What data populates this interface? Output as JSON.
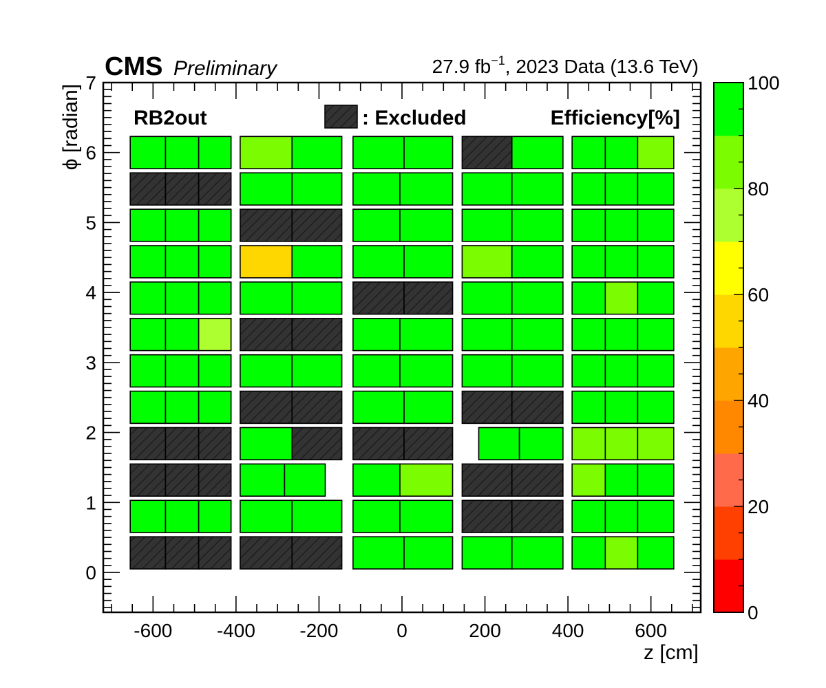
{
  "header": {
    "cms": "CMS",
    "preliminary": "Preliminary",
    "lumi": "27.9 fb",
    "lumi_sup": "−1",
    "lumi_rest": ", 2023 Data (13.6 TeV)"
  },
  "legend": {
    "region": "RB2out",
    "excluded": ": Excluded",
    "efficiency": "Efficiency[%]"
  },
  "chart_data": {
    "type": "heatmap",
    "xlabel": "z [cm]",
    "ylabel": "ϕ [radian]",
    "xlim": [
      -720,
      720
    ],
    "ylim": [
      -0.57,
      7
    ],
    "xticks": [
      -600,
      -400,
      -200,
      0,
      200,
      400,
      600
    ],
    "xtick_labels": [
      "-600",
      "-400",
      "-200",
      "0",
      "200",
      "400",
      "600"
    ],
    "yticks": [
      0,
      1,
      2,
      3,
      4,
      5,
      6,
      7
    ],
    "ytick_labels": [
      "0",
      "1",
      "2",
      "3",
      "4",
      "5",
      "6",
      "7"
    ],
    "colorbar": {
      "min": 0,
      "max": 100,
      "ticks": [
        0,
        20,
        40,
        60,
        80,
        100
      ],
      "tick_labels": [
        "0",
        "20",
        "40",
        "60",
        "80",
        "100"
      ],
      "bands": [
        "#ff0000",
        "#ff4000",
        "#ff6a4a",
        "#ff8800",
        "#ffa500",
        "#ffd700",
        "#ffff00",
        "#adff2f",
        "#7cfc00",
        "#00ff00"
      ]
    },
    "excluded_color": "#333333",
    "sector_height_rad": 0.46,
    "rolls": [
      {
        "y": 6,
        "cells": [
          [
            -655,
            -570,
            95
          ],
          [
            -570,
            -490,
            95
          ],
          [
            -490,
            -412,
            95
          ],
          [
            -390,
            -265,
            85
          ],
          [
            -265,
            -145,
            95
          ],
          [
            -118,
            5,
            95
          ],
          [
            5,
            122,
            95
          ],
          [
            145,
            265,
            null
          ],
          [
            265,
            388,
            95
          ],
          [
            410,
            490,
            95
          ],
          [
            490,
            568,
            95
          ],
          [
            568,
            655,
            85
          ]
        ]
      },
      {
        "y": 5.48,
        "cells": [
          [
            -655,
            -570,
            null
          ],
          [
            -570,
            -490,
            null
          ],
          [
            -490,
            -412,
            null
          ],
          [
            -390,
            -265,
            95
          ],
          [
            -265,
            -145,
            95
          ],
          [
            -118,
            -5,
            95
          ],
          [
            -5,
            122,
            95
          ],
          [
            145,
            265,
            95
          ],
          [
            265,
            388,
            95
          ],
          [
            410,
            490,
            95
          ],
          [
            490,
            568,
            95
          ],
          [
            568,
            655,
            95
          ]
        ]
      },
      {
        "y": 4.96,
        "cells": [
          [
            -655,
            -570,
            95
          ],
          [
            -570,
            -490,
            95
          ],
          [
            -490,
            -412,
            95
          ],
          [
            -390,
            -265,
            null
          ],
          [
            -265,
            -145,
            null
          ],
          [
            -118,
            -5,
            95
          ],
          [
            -5,
            122,
            95
          ],
          [
            145,
            265,
            95
          ],
          [
            265,
            388,
            95
          ],
          [
            410,
            490,
            95
          ],
          [
            490,
            568,
            95
          ],
          [
            568,
            655,
            95
          ]
        ]
      },
      {
        "y": 4.44,
        "cells": [
          [
            -655,
            -570,
            95
          ],
          [
            -570,
            -490,
            95
          ],
          [
            -490,
            -412,
            95
          ],
          [
            -390,
            -265,
            55
          ],
          [
            -265,
            -145,
            95
          ],
          [
            -118,
            5,
            95
          ],
          [
            5,
            122,
            95
          ],
          [
            145,
            265,
            85
          ],
          [
            265,
            388,
            95
          ],
          [
            410,
            490,
            95
          ],
          [
            490,
            568,
            95
          ],
          [
            568,
            655,
            95
          ]
        ]
      },
      {
        "y": 3.92,
        "cells": [
          [
            -655,
            -570,
            95
          ],
          [
            -570,
            -490,
            95
          ],
          [
            -490,
            -412,
            95
          ],
          [
            -390,
            -265,
            95
          ],
          [
            -265,
            -145,
            95
          ],
          [
            -118,
            5,
            null
          ],
          [
            5,
            122,
            null
          ],
          [
            145,
            265,
            95
          ],
          [
            265,
            388,
            95
          ],
          [
            410,
            490,
            95
          ],
          [
            490,
            568,
            85
          ],
          [
            568,
            655,
            95
          ]
        ]
      },
      {
        "y": 3.4,
        "cells": [
          [
            -655,
            -570,
            95
          ],
          [
            -570,
            -490,
            95
          ],
          [
            -490,
            -412,
            75
          ],
          [
            -390,
            -265,
            null
          ],
          [
            -265,
            -145,
            null
          ],
          [
            -118,
            -5,
            95
          ],
          [
            -5,
            122,
            95
          ],
          [
            145,
            265,
            95
          ],
          [
            265,
            388,
            95
          ],
          [
            410,
            490,
            95
          ],
          [
            490,
            568,
            95
          ],
          [
            568,
            655,
            95
          ]
        ]
      },
      {
        "y": 2.88,
        "cells": [
          [
            -655,
            -570,
            95
          ],
          [
            -570,
            -490,
            95
          ],
          [
            -490,
            -412,
            95
          ],
          [
            -390,
            -265,
            95
          ],
          [
            -265,
            -145,
            95
          ],
          [
            -118,
            -5,
            95
          ],
          [
            -5,
            122,
            95
          ],
          [
            145,
            265,
            95
          ],
          [
            265,
            388,
            95
          ],
          [
            410,
            490,
            95
          ],
          [
            490,
            568,
            95
          ],
          [
            568,
            655,
            95
          ]
        ]
      },
      {
        "y": 2.36,
        "cells": [
          [
            -655,
            -570,
            95
          ],
          [
            -570,
            -490,
            95
          ],
          [
            -490,
            -412,
            95
          ],
          [
            -390,
            -265,
            null
          ],
          [
            -265,
            -145,
            null
          ],
          [
            -118,
            5,
            95
          ],
          [
            5,
            122,
            95
          ],
          [
            145,
            265,
            null
          ],
          [
            265,
            388,
            null
          ],
          [
            410,
            490,
            95
          ],
          [
            490,
            568,
            95
          ],
          [
            568,
            655,
            95
          ]
        ]
      },
      {
        "y": 1.84,
        "cells": [
          [
            -655,
            -570,
            null
          ],
          [
            -570,
            -490,
            null
          ],
          [
            -490,
            -412,
            null
          ],
          [
            -390,
            -265,
            95
          ],
          [
            -265,
            -145,
            null
          ],
          [
            -118,
            5,
            null
          ],
          [
            5,
            122,
            null
          ],
          [
            185,
            283,
            95
          ],
          [
            283,
            388,
            95
          ],
          [
            410,
            490,
            85
          ],
          [
            490,
            568,
            85
          ],
          [
            568,
            655,
            85
          ]
        ]
      },
      {
        "y": 1.32,
        "cells": [
          [
            -655,
            -570,
            null
          ],
          [
            -570,
            -490,
            null
          ],
          [
            -490,
            -412,
            null
          ],
          [
            -390,
            -283,
            95
          ],
          [
            -283,
            -185,
            95
          ],
          [
            -118,
            -5,
            95
          ],
          [
            -5,
            122,
            85
          ],
          [
            145,
            265,
            null
          ],
          [
            265,
            388,
            null
          ],
          [
            410,
            490,
            85
          ],
          [
            490,
            568,
            95
          ],
          [
            568,
            655,
            95
          ]
        ]
      },
      {
        "y": 0.8,
        "cells": [
          [
            -655,
            -570,
            95
          ],
          [
            -570,
            -490,
            95
          ],
          [
            -490,
            -412,
            95
          ],
          [
            -390,
            -265,
            95
          ],
          [
            -265,
            -145,
            95
          ],
          [
            -118,
            -5,
            95
          ],
          [
            -5,
            122,
            95
          ],
          [
            145,
            265,
            null
          ],
          [
            265,
            388,
            null
          ],
          [
            410,
            490,
            95
          ],
          [
            490,
            568,
            95
          ],
          [
            568,
            655,
            95
          ]
        ]
      },
      {
        "y": 0.28,
        "cells": [
          [
            -655,
            -570,
            null
          ],
          [
            -570,
            -490,
            null
          ],
          [
            -490,
            -412,
            null
          ],
          [
            -390,
            -265,
            null
          ],
          [
            -265,
            -145,
            null
          ],
          [
            -118,
            5,
            95
          ],
          [
            5,
            122,
            95
          ],
          [
            145,
            265,
            95
          ],
          [
            265,
            388,
            95
          ],
          [
            410,
            490,
            95
          ],
          [
            490,
            568,
            85
          ],
          [
            568,
            655,
            95
          ]
        ]
      }
    ]
  }
}
